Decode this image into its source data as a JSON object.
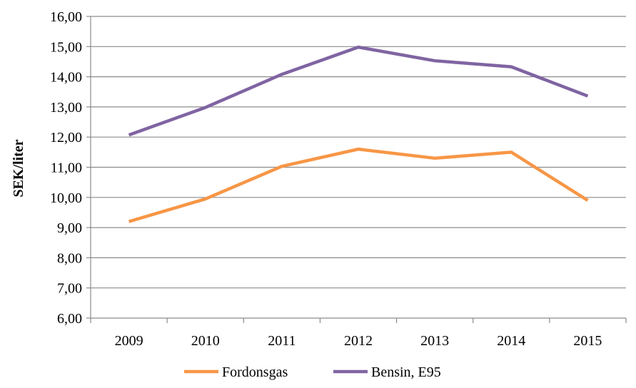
{
  "chart_data": {
    "type": "line",
    "title": "",
    "xlabel": "",
    "ylabel": "SEK/liter",
    "categories": [
      "2009",
      "2010",
      "2011",
      "2012",
      "2013",
      "2014",
      "2015"
    ],
    "yticks": [
      "6,00",
      "7,00",
      "8,00",
      "9,00",
      "10,00",
      "11,00",
      "12,00",
      "13,00",
      "14,00",
      "15,00",
      "16,00"
    ],
    "ylim": [
      6,
      16
    ],
    "grid": true,
    "legend": "bottom",
    "series": [
      {
        "name": "Fordonsgas",
        "color": "#f79646",
        "values": [
          9.2,
          9.95,
          11.03,
          11.6,
          11.3,
          11.5,
          9.9
        ]
      },
      {
        "name": "Bensin, E95",
        "color": "#8064a2",
        "values": [
          12.07,
          12.98,
          14.08,
          14.98,
          14.53,
          14.33,
          13.36
        ]
      }
    ]
  }
}
